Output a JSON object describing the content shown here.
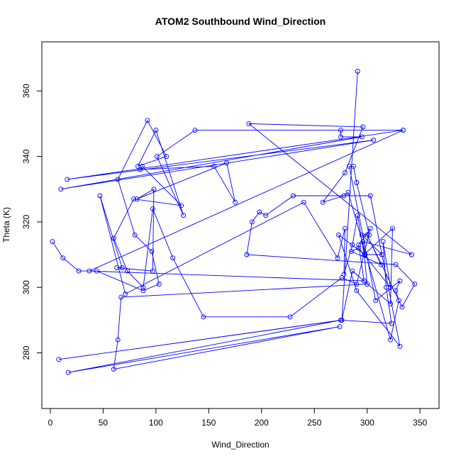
{
  "chart_data": {
    "type": "line",
    "title": "ATOM2 Southbound Wind_Direction",
    "xlabel": "Wind_Direction",
    "ylabel": "Theta (K)",
    "xlim": [
      -8,
      368
    ],
    "ylim": [
      263,
      375
    ],
    "x_ticks": [
      0,
      50,
      100,
      150,
      200,
      250,
      300,
      350
    ],
    "y_ticks": [
      280,
      300,
      320,
      340,
      360
    ],
    "grid": false,
    "legend": "none",
    "marker": "open-circle",
    "series": [
      {
        "color": "#0000ff",
        "points": [
          [
            2,
            314
          ],
          [
            12,
            309
          ],
          [
            27,
            305
          ],
          [
            44,
            305
          ],
          [
            88,
            299
          ],
          [
            103,
            301
          ],
          [
            96,
            311
          ],
          [
            80,
            316
          ],
          [
            64,
            333
          ],
          [
            92,
            351
          ],
          [
            110,
            340
          ],
          [
            83,
            337
          ],
          [
            100,
            348
          ],
          [
            126,
            322
          ],
          [
            101,
            340
          ],
          [
            137,
            348
          ],
          [
            334,
            348
          ],
          [
            16,
            333
          ],
          [
            306,
            345
          ],
          [
            10,
            330
          ],
          [
            295,
            346
          ],
          [
            275,
            346
          ],
          [
            275,
            348
          ],
          [
            334,
            348
          ],
          [
            37,
            305
          ],
          [
            297,
            302
          ],
          [
            292,
            313
          ],
          [
            303,
            318
          ],
          [
            290,
            301
          ],
          [
            276,
            303
          ],
          [
            227,
            291
          ],
          [
            145,
            291
          ],
          [
            116,
            309
          ],
          [
            97,
            324
          ],
          [
            88,
            300
          ],
          [
            73,
            305
          ],
          [
            60,
            315
          ],
          [
            79,
            327
          ],
          [
            124,
            325
          ],
          [
            87,
            337
          ],
          [
            85,
            336
          ],
          [
            155,
            337
          ],
          [
            175,
            326
          ],
          [
            167,
            338
          ],
          [
            82,
            327
          ],
          [
            98,
            330
          ],
          [
            97,
            305
          ],
          [
            63,
            306
          ],
          [
            68,
            306
          ],
          [
            47,
            328
          ],
          [
            71,
            298
          ],
          [
            240,
            326
          ],
          [
            272,
            309
          ],
          [
            279,
            318
          ],
          [
            278,
            304
          ],
          [
            286,
            313
          ],
          [
            291,
            322
          ],
          [
            297,
            310
          ],
          [
            324,
            318
          ],
          [
            322,
            295
          ],
          [
            286,
            305
          ],
          [
            276,
            290
          ],
          [
            8,
            278
          ],
          [
            275,
            290
          ],
          [
            17,
            274
          ],
          [
            274,
            288
          ],
          [
            60,
            275
          ],
          [
            64,
            284
          ],
          [
            67,
            297
          ],
          [
            300,
            301
          ],
          [
            296,
            314
          ],
          [
            342,
            310
          ],
          [
            188,
            350
          ],
          [
            296,
            349
          ],
          [
            279,
            335
          ],
          [
            258,
            326
          ],
          [
            278,
            328
          ],
          [
            282,
            329
          ],
          [
            322,
            284
          ],
          [
            330,
            296
          ],
          [
            327,
            299
          ],
          [
            331,
            302
          ],
          [
            308,
            296
          ],
          [
            283,
            337
          ],
          [
            287,
            337
          ],
          [
            290,
            332
          ],
          [
            302,
            316
          ],
          [
            295,
            316
          ],
          [
            314,
            310
          ],
          [
            298,
            310
          ],
          [
            273,
            316
          ],
          [
            290,
            299
          ],
          [
            331,
            282
          ],
          [
            303,
            328
          ],
          [
            230,
            328
          ],
          [
            204,
            322
          ],
          [
            198,
            323
          ],
          [
            191,
            320
          ],
          [
            186,
            310
          ],
          [
            327,
            307
          ],
          [
            345,
            301
          ],
          [
            333,
            294
          ],
          [
            300,
            316
          ],
          [
            313,
            307
          ],
          [
            285,
            311
          ],
          [
            292,
            312
          ],
          [
            322,
            300
          ],
          [
            315,
            314
          ],
          [
            318,
            300
          ],
          [
            323,
            289
          ],
          [
            276,
            290
          ],
          [
            291,
            366
          ]
        ]
      }
    ]
  }
}
